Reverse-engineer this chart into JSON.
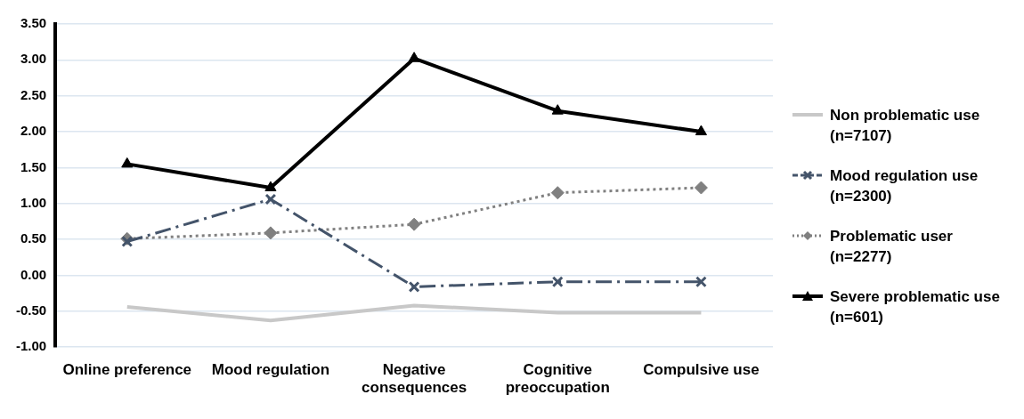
{
  "chart_data": {
    "type": "line",
    "categories": [
      "Online preference",
      "Mood regulation",
      "Negative consequences",
      "Cognitive preoccupation",
      "Compulsive use"
    ],
    "series": [
      {
        "name": "Non problematic use (n=7107)",
        "color": "#c8c8c8",
        "marker": "none",
        "line_style": "solid",
        "values": [
          -0.44,
          -0.63,
          -0.42,
          -0.52,
          -0.52
        ]
      },
      {
        "name": "Mood regulation use (n=2300)",
        "color": "#44546a",
        "marker": "cross",
        "line_style": "dashed",
        "values": [
          0.47,
          1.06,
          -0.16,
          -0.09,
          -0.09
        ]
      },
      {
        "name": "Problematic user (n=2277)",
        "color": "#808080",
        "marker": "diamond",
        "line_style": "dotted",
        "values": [
          0.51,
          0.59,
          0.71,
          1.15,
          1.22
        ]
      },
      {
        "name": "Severe problematic use (n=601)",
        "color": "#000000",
        "marker": "triangle",
        "line_style": "solid",
        "values": [
          1.55,
          1.22,
          3.02,
          2.29,
          2.0
        ]
      }
    ],
    "ylim": [
      -1,
      3.5
    ],
    "yticks": [
      {
        "value": -1,
        "label": "-1.00"
      },
      {
        "value": -0.5,
        "label": "-0.50"
      },
      {
        "value": 0,
        "label": "0.00"
      },
      {
        "value": 0.5,
        "label": "0.50"
      },
      {
        "value": 1,
        "label": "1.00"
      },
      {
        "value": 1.5,
        "label": "1.50"
      },
      {
        "value": 2,
        "label": "2.00"
      },
      {
        "value": 2.5,
        "label": "2.50"
      },
      {
        "value": 3,
        "label": "3.00"
      },
      {
        "value": 3.5,
        "label": "3.50"
      }
    ],
    "grid": "y",
    "legend": "right"
  }
}
